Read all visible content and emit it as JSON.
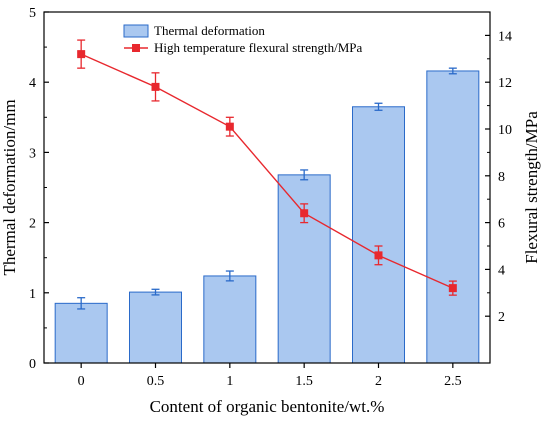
{
  "chart_data": {
    "type": "bar+line",
    "categories": [
      "0",
      "0.5",
      "1",
      "1.5",
      "2",
      "2.5"
    ],
    "xlabel": "Content of organic bentonite/wt.%",
    "ylabel_left": "Thermal deformation/mm",
    "ylabel_right": "Flexural strength/MPa",
    "ylim_left": [
      0,
      5
    ],
    "ylim_right": [
      0,
      15
    ],
    "yticks_left": [
      "0",
      "1",
      "2",
      "3",
      "4",
      "5"
    ],
    "yticks_right": [
      "2",
      "4",
      "6",
      "8",
      "10",
      "12",
      "14"
    ],
    "series": [
      {
        "name": "Thermal deformation",
        "type": "bar",
        "axis": "left",
        "values": [
          0.85,
          1.01,
          1.24,
          2.68,
          3.65,
          4.16
        ],
        "errors": [
          0.08,
          0.04,
          0.07,
          0.07,
          0.05,
          0.04
        ],
        "color": "#aac8f0",
        "edge_color": "#2a6ac9"
      },
      {
        "name": "High temperature flexural strength/MPa",
        "type": "line",
        "axis": "right",
        "values": [
          13.2,
          11.8,
          10.1,
          6.4,
          4.6,
          3.2
        ],
        "errors": [
          0.6,
          0.6,
          0.4,
          0.4,
          0.4,
          0.3
        ],
        "color": "#e8282e"
      }
    ],
    "legend_position": "top-left",
    "grid": false
  }
}
